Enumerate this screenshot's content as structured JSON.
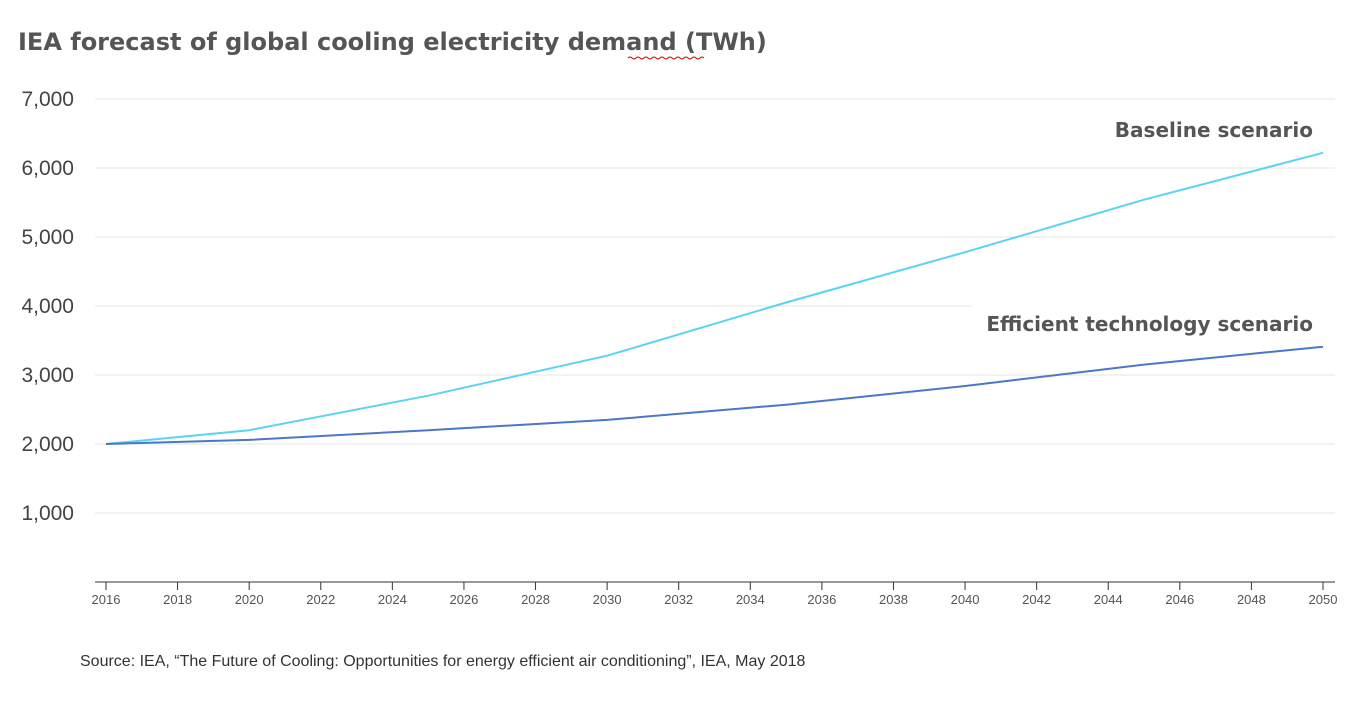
{
  "chart_data": {
    "type": "line",
    "title": "IEA forecast of global cooling electricity demand (TWh)",
    "xlabel": "",
    "ylabel": "",
    "xlim": [
      2016,
      2050
    ],
    "ylim": [
      0,
      7000
    ],
    "grid": true,
    "legend": "inline labels at right end of lines",
    "x_ticks": [
      "2016",
      "2018",
      "2020",
      "2022",
      "2024",
      "2026",
      "2028",
      "2030",
      "2032",
      "2034",
      "2036",
      "2038",
      "2040",
      "2042",
      "2044",
      "2046",
      "2048",
      "2050"
    ],
    "y_ticks": [
      "1,000",
      "2,000",
      "3,000",
      "4,000",
      "5,000",
      "6,000",
      "7,000"
    ],
    "x": [
      2016,
      2020,
      2025,
      2030,
      2035,
      2040,
      2045,
      2050
    ],
    "series": [
      {
        "name": "Baseline scenario",
        "color": "#5bd3f2",
        "values": [
          2000,
          2200,
          2700,
          3280,
          4050,
          4780,
          5540,
          6220
        ]
      },
      {
        "name": "Efficient technology scenario",
        "color": "#4a78c8",
        "values": [
          2000,
          2060,
          2200,
          2350,
          2570,
          2840,
          3150,
          3410
        ]
      }
    ],
    "source": "Source: IEA, “The Future of Cooling: Opportunities for energy efficient air conditioning”, IEA, May 2018"
  }
}
